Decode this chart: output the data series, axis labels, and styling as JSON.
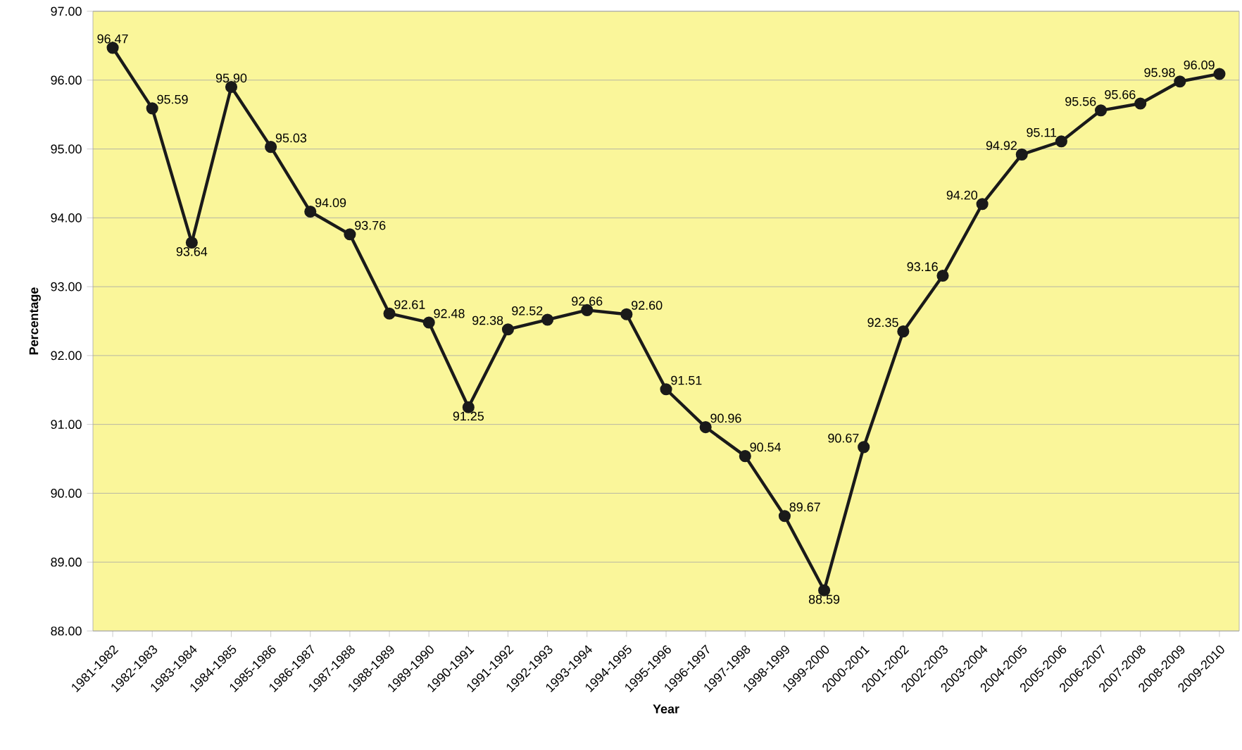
{
  "chart_data": {
    "type": "line",
    "xlabel": "Year",
    "ylabel": "Percentage",
    "categories": [
      "1981-1982",
      "1982-1983",
      "1983-1984",
      "1984-1985",
      "1985-1986",
      "1986-1987",
      "1987-1988",
      "1988-1989",
      "1989-1990",
      "1990-1991",
      "1991-1992",
      "1992-1993",
      "1993-1994",
      "1994-1995",
      "1995-1996",
      "1996-1997",
      "1997-1998",
      "1998-1999",
      "1999-2000",
      "2000-2001",
      "2001-2002",
      "2002-2003",
      "2003-2004",
      "2004-2005",
      "2005-2006",
      "2006-2007",
      "2007-2008",
      "2008-2009",
      "2009-2010"
    ],
    "series": [
      {
        "color": "#1a1a1a",
        "values": [
          96.47,
          95.59,
          93.64,
          95.9,
          95.03,
          94.09,
          93.76,
          92.61,
          92.48,
          91.25,
          92.38,
          92.52,
          92.66,
          92.6,
          91.51,
          90.96,
          90.54,
          89.67,
          88.59,
          90.67,
          92.35,
          93.16,
          94.2,
          94.92,
          95.11,
          95.56,
          95.66,
          95.98,
          96.09
        ],
        "value_labels": [
          "96.47",
          "95.59",
          "93.64",
          "95.90",
          "95.03",
          "94.09",
          "93.76",
          "92.61",
          "92.48",
          "91.25",
          "92.38",
          "92.52",
          "92.66",
          "92.60",
          "91.51",
          "90.96",
          "90.54",
          "89.67",
          "88.59",
          "90.67",
          "92.35",
          "93.16",
          "94.20",
          "94.92",
          "95.11",
          "95.56",
          "95.66",
          "95.98",
          "96.09"
        ]
      }
    ],
    "ylim": [
      88,
      97
    ],
    "yticks": [
      {
        "value": 88,
        "label": "88.00"
      },
      {
        "value": 89,
        "label": "89.00"
      },
      {
        "value": 90,
        "label": "90.00"
      },
      {
        "value": 91,
        "label": "91.00"
      },
      {
        "value": 92,
        "label": "92.00"
      },
      {
        "value": 93,
        "label": "93.00"
      },
      {
        "value": 94,
        "label": "94.00"
      },
      {
        "value": 95,
        "label": "95.00"
      },
      {
        "value": 96,
        "label": "96.00"
      },
      {
        "value": 97,
        "label": "97.00"
      }
    ],
    "grid": "y",
    "marker": "circle",
    "line_style": "solid"
  }
}
